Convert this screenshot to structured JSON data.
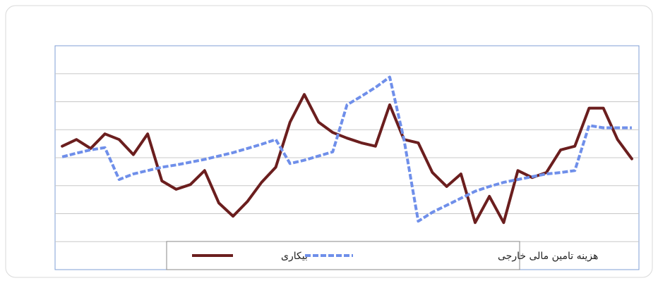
{
  "chart_data": {
    "type": "line",
    "categories": [
      null,
      null,
      null,
      null,
      null,
      null,
      null,
      null,
      null,
      null,
      null,
      null,
      null,
      null,
      null,
      null,
      null,
      null,
      null,
      null,
      null,
      null,
      null,
      null,
      null,
      null,
      null,
      null,
      null,
      null,
      null,
      null,
      null,
      null,
      null,
      null,
      null,
      null,
      null,
      null,
      null
    ],
    "series": [
      {
        "name": "بیکاری",
        "color": "#6b1e1e",
        "dash": false,
        "values": [
          4.41,
          4.65,
          4.33,
          4.85,
          4.65,
          4.11,
          4.85,
          3.17,
          2.87,
          3.04,
          3.54,
          2.38,
          1.91,
          2.43,
          3.12,
          3.66,
          5.27,
          6.26,
          5.27,
          4.9,
          4.7,
          4.53,
          4.41,
          5.89,
          4.65,
          4.53,
          3.47,
          2.97,
          3.42,
          1.68,
          2.62,
          1.68,
          3.54,
          3.29,
          3.47,
          4.28,
          4.41,
          5.77,
          5.77,
          4.65,
          3.96
        ]
      },
      {
        "name": "هزینه تامین مالی خارجی",
        "color": "#6f8fea",
        "dash": true,
        "values": [
          4.03,
          4.16,
          4.28,
          4.36,
          3.22,
          3.42,
          3.54,
          3.66,
          3.74,
          3.84,
          3.94,
          4.06,
          4.18,
          4.33,
          4.48,
          4.65,
          3.79,
          3.91,
          4.06,
          4.21,
          5.89,
          6.19,
          6.51,
          6.88,
          4.65,
          1.73,
          2.05,
          2.3,
          2.55,
          2.8,
          2.97,
          3.12,
          3.22,
          3.32,
          3.42,
          3.47,
          3.54,
          5.15,
          5.07,
          5.07,
          5.07
        ]
      }
    ],
    "ylim": [
      0,
      8
    ],
    "yticks": [
      1,
      2,
      3,
      4,
      5,
      6,
      7
    ],
    "grid": true
  }
}
